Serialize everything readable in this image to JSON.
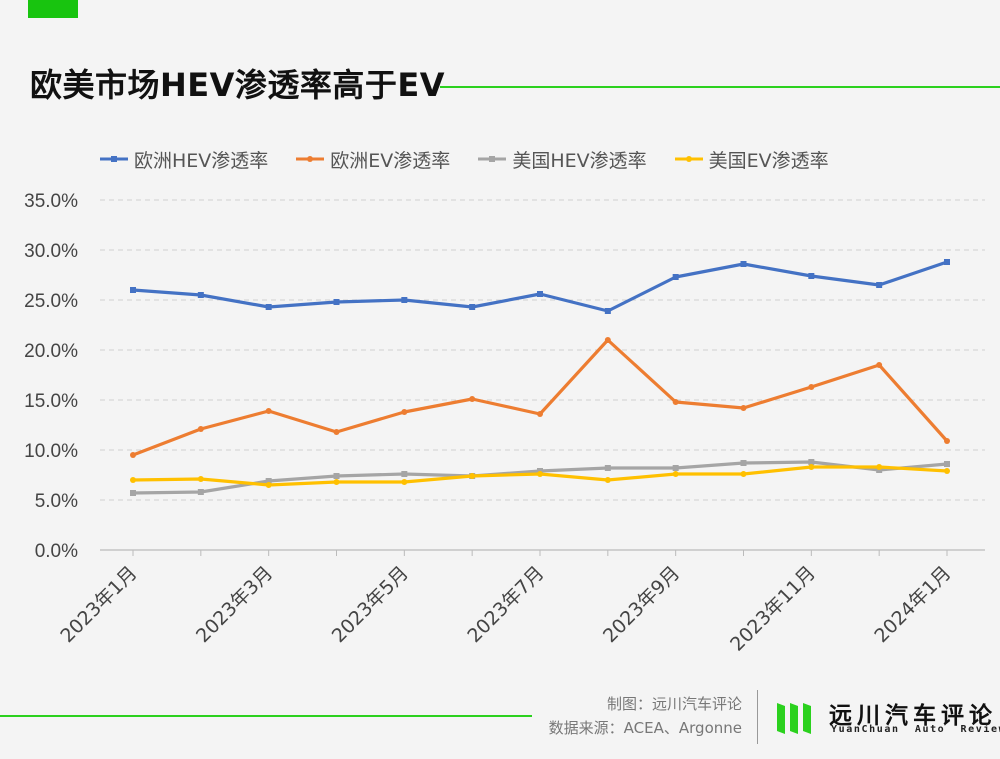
{
  "header": {
    "title": "欧美市场HEV渗透率高于EV"
  },
  "chart_data": {
    "type": "line",
    "title": "欧美市场HEV渗透率高于EV",
    "categories": [
      "2023年1月",
      "2023年2月",
      "2023年3月",
      "2023年4月",
      "2023年5月",
      "2023年6月",
      "2023年7月",
      "2023年8月",
      "2023年9月",
      "2023年10月",
      "2023年11月",
      "2023年12月",
      "2024年1月"
    ],
    "visible_tick_labels": [
      "2023年1月",
      "2023年3月",
      "2023年5月",
      "2023年7月",
      "2023年9月",
      "2023年11月",
      "2024年1月"
    ],
    "y_tick_labels": [
      "0.0%",
      "5.0%",
      "10.0%",
      "15.0%",
      "20.0%",
      "25.0%",
      "30.0%",
      "35.0%"
    ],
    "ylim": [
      0,
      35
    ],
    "y_unit": "%",
    "grid": "horizontal dashed",
    "legend_position": "top",
    "series": [
      {
        "name": "欧洲HEV渗透率",
        "color": "#4472c4",
        "marker": "square",
        "values": [
          26.0,
          25.5,
          24.3,
          24.8,
          25.0,
          24.3,
          25.6,
          23.9,
          27.3,
          28.6,
          27.4,
          26.5,
          28.8
        ]
      },
      {
        "name": "欧洲EV渗透率",
        "color": "#ed7d31",
        "marker": "circle",
        "values": [
          9.5,
          12.1,
          13.9,
          11.8,
          13.8,
          15.1,
          13.6,
          21.0,
          14.8,
          14.2,
          16.3,
          18.5,
          10.9
        ]
      },
      {
        "name": "美国HEV渗透率",
        "color": "#a5a5a5",
        "marker": "square",
        "values": [
          5.7,
          5.8,
          6.9,
          7.4,
          7.6,
          7.4,
          7.9,
          8.2,
          8.2,
          8.7,
          8.8,
          8.0,
          8.6
        ]
      },
      {
        "name": "美国EV渗透率",
        "color": "#ffc000",
        "marker": "circle",
        "values": [
          7.0,
          7.1,
          6.5,
          6.8,
          6.8,
          7.4,
          7.6,
          7.0,
          7.6,
          7.6,
          8.3,
          8.3,
          7.9
        ]
      }
    ]
  },
  "footer": {
    "credit_line1": "制图：远川汽车评论",
    "credit_line2": "数据来源：ACEA、Argonne",
    "brand_cn": "远川汽车评论",
    "brand_en": "YuanChuan  Auto  Review",
    "brand_color": "#2bd11e"
  }
}
